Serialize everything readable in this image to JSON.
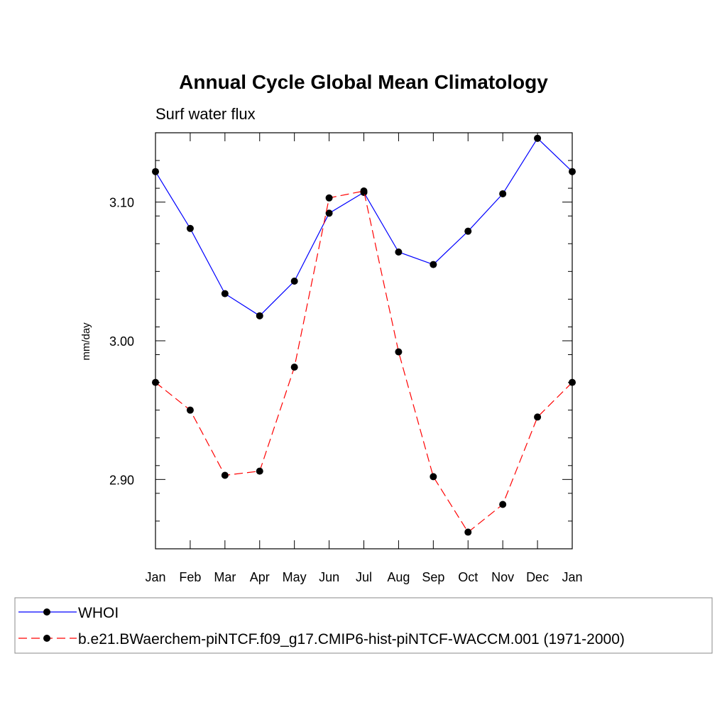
{
  "chart_data": {
    "type": "line",
    "title": "Annual Cycle Global Mean Climatology",
    "subtitle": "Surf water flux",
    "xlabel": "",
    "ylabel": "mm/day",
    "categories": [
      "Jan",
      "Feb",
      "Mar",
      "Apr",
      "May",
      "Jun",
      "Jul",
      "Aug",
      "Sep",
      "Oct",
      "Nov",
      "Dec",
      "Jan"
    ],
    "ylim": [
      2.85,
      3.15
    ],
    "yticks": [
      2.9,
      3.0,
      3.1
    ],
    "ytick_labels": [
      "2.90",
      "3.00",
      "3.10"
    ],
    "yminor_step": 0.02,
    "grid": false,
    "legend_position": "bottom",
    "series": [
      {
        "name": "WHOI",
        "color": "#0000ff",
        "dash": "solid",
        "marker": "circle",
        "values": [
          3.122,
          3.081,
          3.034,
          3.018,
          3.043,
          3.092,
          3.107,
          3.064,
          3.055,
          3.079,
          3.106,
          3.146,
          3.122
        ]
      },
      {
        "name": "b.e21.BWaerchem-piNTCF.f09_g17.CMIP6-hist-piNTCF-WACCM.001 (1971-2000)",
        "color": "#ff0000",
        "dash": "dashed",
        "marker": "circle",
        "values": [
          2.97,
          2.95,
          2.903,
          2.906,
          2.981,
          3.103,
          3.108,
          2.992,
          2.902,
          2.862,
          2.882,
          2.945,
          2.97
        ]
      }
    ]
  }
}
